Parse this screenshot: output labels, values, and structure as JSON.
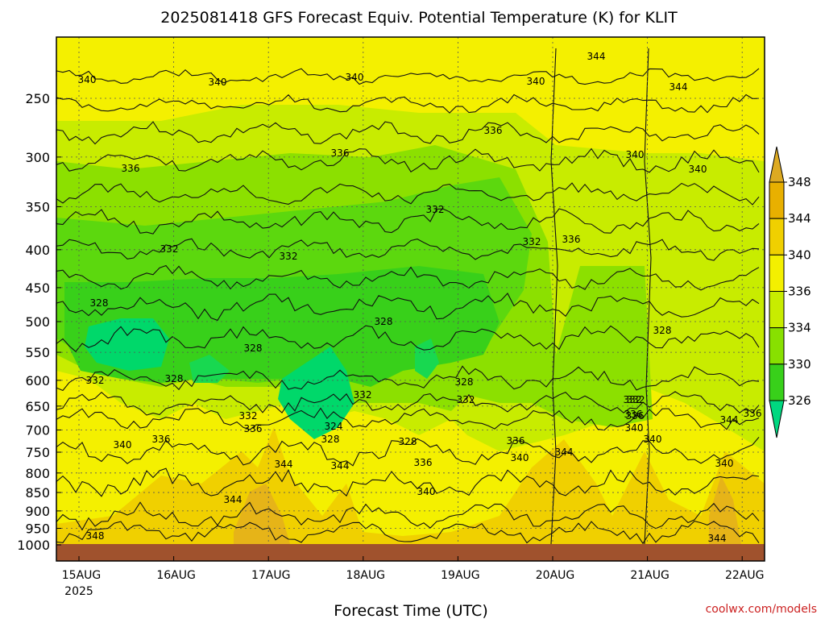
{
  "chart_data": {
    "type": "heatmap",
    "title": "2025081418 GFS Forecast Equiv. Potential Temperature (K) for KLIT",
    "xlabel": "Forecast Time (UTC)",
    "ylabel": "",
    "credit": "coolwx.com/models",
    "x_ticks": [
      "15AUG",
      "16AUG",
      "17AUG",
      "18AUG",
      "19AUG",
      "20AUG",
      "21AUG",
      "22AUG"
    ],
    "x_year_label": "2025",
    "y_ticks": [
      250,
      300,
      350,
      400,
      450,
      500,
      550,
      600,
      650,
      700,
      750,
      800,
      850,
      900,
      950,
      1000
    ],
    "y_reversed": true,
    "colorbar": {
      "ticks": [
        326,
        330,
        334,
        336,
        340,
        344,
        348
      ],
      "colors": [
        "#00e060",
        "#4cd81c",
        "#88e000",
        "#ccf000",
        "#f4f000",
        "#f0d000",
        "#e0a000",
        "#ddaa22"
      ]
    },
    "contour_labels": [
      "340",
      "340",
      "340",
      "340",
      "344",
      "344",
      "336",
      "336",
      "336",
      "340",
      "340",
      "332",
      "332",
      "332",
      "332",
      "336",
      "328",
      "328",
      "328",
      "328",
      "332",
      "332",
      "328",
      "332",
      "336",
      "332",
      "328",
      "324",
      "328",
      "332",
      "328",
      "336",
      "336",
      "340",
      "340",
      "336",
      "344",
      "344",
      "340",
      "336",
      "340",
      "344",
      "332",
      "336",
      "340",
      "344",
      "336",
      "340",
      "344",
      "348",
      "344"
    ],
    "grid": true,
    "ground_color": "#a0522d"
  }
}
